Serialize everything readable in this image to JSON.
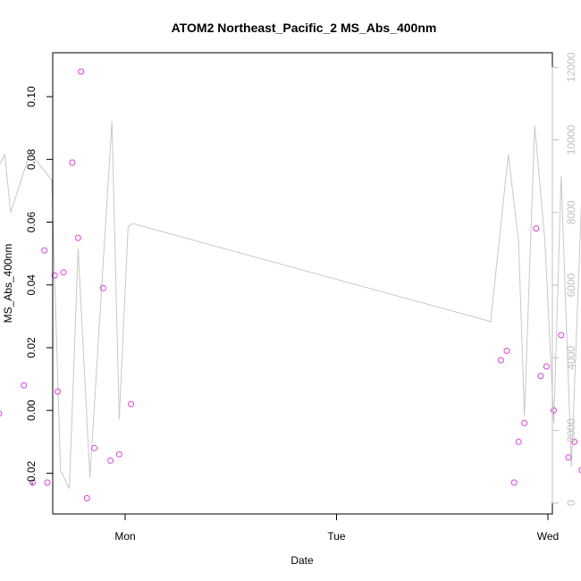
{
  "chart_data": {
    "type": "scatter",
    "title": "ATOM2 Northeast_Pacific_2 MS_Abs_400nm",
    "xlabel": "Date",
    "ylabel": "MS_Abs_400nm",
    "x_ticks": [
      "Mon",
      "Tue",
      "Wed"
    ],
    "y_ticks": [
      "-0.02",
      "0.00",
      "0.02",
      "0.04",
      "0.06",
      "0.08",
      "0.10"
    ],
    "y2_ticks": [
      "0",
      "2000",
      "4000",
      "6000",
      "8000",
      "10000",
      "12000"
    ],
    "ylim": [
      -0.033,
      0.114
    ],
    "y2lim": [
      -300,
      12400
    ],
    "grid": false,
    "colors": {
      "points": "#e040e0",
      "line": "#c8c8c8",
      "right_axis": "#c0c0c0"
    },
    "series": [
      {
        "kind": "points",
        "points": [
          [
            "Sun 07:30",
            -0.022
          ],
          [
            "Sun 08:40",
            0.002
          ],
          [
            "Sun 09:20",
            0.047
          ],
          [
            "Sun 09:40",
            -0.001
          ],
          [
            "Sun 12:30",
            0.008
          ],
          [
            "Sun 13:30",
            -0.023
          ],
          [
            "Sun 14:50",
            0.051
          ],
          [
            "Sun 15:10",
            -0.023
          ],
          [
            "Sun 16:00",
            0.043
          ],
          [
            "Sun 16:20",
            0.006
          ],
          [
            "Sun 17:00",
            0.044
          ],
          [
            "Sun 18:00",
            0.079
          ],
          [
            "Sun 18:40",
            0.055
          ],
          [
            "Sun 19:00",
            0.108
          ],
          [
            "Sun 19:40",
            -0.028
          ],
          [
            "Sun 20:30",
            -0.012
          ],
          [
            "Sun 21:30",
            0.039
          ],
          [
            "Sun 22:20",
            -0.016
          ],
          [
            "Sun 23:20",
            -0.014
          ],
          [
            "Mon 00:40",
            0.002
          ],
          [
            "Tue 18:40",
            0.016
          ],
          [
            "Tue 19:20",
            0.019
          ],
          [
            "Tue 20:10",
            -0.023
          ],
          [
            "Tue 20:40",
            -0.01
          ],
          [
            "Tue 21:20",
            -0.004
          ],
          [
            "Tue 22:40",
            0.058
          ],
          [
            "Tue 23:10",
            0.011
          ],
          [
            "Tue 23:50",
            0.014
          ],
          [
            "Wed 00:40",
            0.0
          ],
          [
            "Wed 01:30",
            0.024
          ],
          [
            "Wed 02:20",
            -0.015
          ],
          [
            "Wed 03:00",
            -0.01
          ],
          [
            "Wed 03:50",
            -0.019
          ],
          [
            "Wed 04:40",
            0.0
          ],
          [
            "Wed 05:20",
            0.002
          ],
          [
            "Wed 05:50",
            0.005
          ],
          [
            "Wed 06:30",
            -0.018
          ],
          [
            "Wed 07:40",
            -0.002
          ],
          [
            "Wed 08:30",
            0.003
          ],
          [
            "Wed 10:00",
            0.027
          ],
          [
            "Wed 11:00",
            -0.02
          ]
        ]
      },
      {
        "kind": "line",
        "axis": "right",
        "points": [
          [
            "Sun 08:00",
            1200
          ],
          [
            "Sun 09:30",
            9200
          ],
          [
            "Sun 10:20",
            9600
          ],
          [
            "Sun 11:00",
            8000
          ],
          [
            "Sun 13:00",
            9500
          ],
          [
            "Sun 13:40",
            9500
          ],
          [
            "Sun 15:40",
            8900
          ],
          [
            "Sun 16:40",
            900
          ],
          [
            "Sun 17:40",
            400
          ],
          [
            "Sun 18:40",
            7000
          ],
          [
            "Sun 20:00",
            700
          ],
          [
            "Sun 22:30",
            10500
          ],
          [
            "Sun 23:20",
            2300
          ],
          [
            "Mon 00:20",
            7600
          ],
          [
            "Mon 00:50",
            7700
          ],
          [
            "Tue 17:30",
            5000
          ],
          [
            "Tue 19:30",
            9600
          ],
          [
            "Tue 20:40",
            7200
          ],
          [
            "Tue 21:20",
            2400
          ],
          [
            "Tue 22:30",
            10400
          ],
          [
            "Tue 23:40",
            7200
          ],
          [
            "Wed 00:40",
            2200
          ],
          [
            "Wed 01:30",
            9000
          ],
          [
            "Wed 02:40",
            1000
          ],
          [
            "Wed 04:00",
            9500
          ],
          [
            "Wed 05:00",
            2100
          ],
          [
            "Wed 05:40",
            300
          ],
          [
            "Wed 06:40",
            7600
          ],
          [
            "Wed 07:40",
            11800
          ],
          [
            "Wed 10:00",
            12000
          ],
          [
            "Wed 11:00",
            10800
          ]
        ]
      }
    ]
  }
}
